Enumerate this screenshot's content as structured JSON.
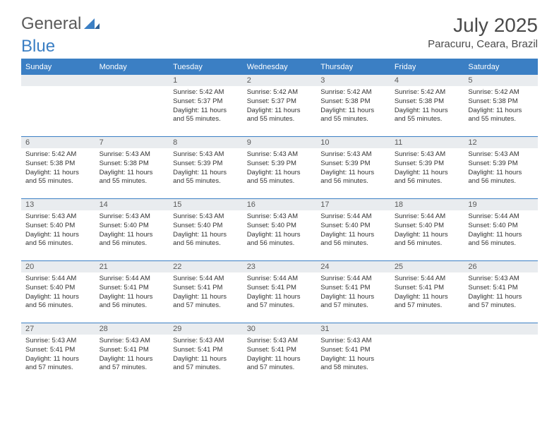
{
  "logo": {
    "text_general": "General",
    "text_blue": "Blue"
  },
  "title": "July 2025",
  "location": "Paracuru, Ceara, Brazil",
  "colors": {
    "accent": "#3b7fc4",
    "header_text": "#ffffff",
    "daynum_bg": "#e9ecef",
    "body_text": "#333333",
    "title_text": "#4a4a4a"
  },
  "day_headers": [
    "Sunday",
    "Monday",
    "Tuesday",
    "Wednesday",
    "Thursday",
    "Friday",
    "Saturday"
  ],
  "weeks": [
    [
      {
        "n": "",
        "sr": "",
        "ss": "",
        "dl": ""
      },
      {
        "n": "",
        "sr": "",
        "ss": "",
        "dl": ""
      },
      {
        "n": "1",
        "sr": "Sunrise: 5:42 AM",
        "ss": "Sunset: 5:37 PM",
        "dl": "Daylight: 11 hours and 55 minutes."
      },
      {
        "n": "2",
        "sr": "Sunrise: 5:42 AM",
        "ss": "Sunset: 5:37 PM",
        "dl": "Daylight: 11 hours and 55 minutes."
      },
      {
        "n": "3",
        "sr": "Sunrise: 5:42 AM",
        "ss": "Sunset: 5:38 PM",
        "dl": "Daylight: 11 hours and 55 minutes."
      },
      {
        "n": "4",
        "sr": "Sunrise: 5:42 AM",
        "ss": "Sunset: 5:38 PM",
        "dl": "Daylight: 11 hours and 55 minutes."
      },
      {
        "n": "5",
        "sr": "Sunrise: 5:42 AM",
        "ss": "Sunset: 5:38 PM",
        "dl": "Daylight: 11 hours and 55 minutes."
      }
    ],
    [
      {
        "n": "6",
        "sr": "Sunrise: 5:42 AM",
        "ss": "Sunset: 5:38 PM",
        "dl": "Daylight: 11 hours and 55 minutes."
      },
      {
        "n": "7",
        "sr": "Sunrise: 5:43 AM",
        "ss": "Sunset: 5:38 PM",
        "dl": "Daylight: 11 hours and 55 minutes."
      },
      {
        "n": "8",
        "sr": "Sunrise: 5:43 AM",
        "ss": "Sunset: 5:39 PM",
        "dl": "Daylight: 11 hours and 55 minutes."
      },
      {
        "n": "9",
        "sr": "Sunrise: 5:43 AM",
        "ss": "Sunset: 5:39 PM",
        "dl": "Daylight: 11 hours and 55 minutes."
      },
      {
        "n": "10",
        "sr": "Sunrise: 5:43 AM",
        "ss": "Sunset: 5:39 PM",
        "dl": "Daylight: 11 hours and 56 minutes."
      },
      {
        "n": "11",
        "sr": "Sunrise: 5:43 AM",
        "ss": "Sunset: 5:39 PM",
        "dl": "Daylight: 11 hours and 56 minutes."
      },
      {
        "n": "12",
        "sr": "Sunrise: 5:43 AM",
        "ss": "Sunset: 5:39 PM",
        "dl": "Daylight: 11 hours and 56 minutes."
      }
    ],
    [
      {
        "n": "13",
        "sr": "Sunrise: 5:43 AM",
        "ss": "Sunset: 5:40 PM",
        "dl": "Daylight: 11 hours and 56 minutes."
      },
      {
        "n": "14",
        "sr": "Sunrise: 5:43 AM",
        "ss": "Sunset: 5:40 PM",
        "dl": "Daylight: 11 hours and 56 minutes."
      },
      {
        "n": "15",
        "sr": "Sunrise: 5:43 AM",
        "ss": "Sunset: 5:40 PM",
        "dl": "Daylight: 11 hours and 56 minutes."
      },
      {
        "n": "16",
        "sr": "Sunrise: 5:43 AM",
        "ss": "Sunset: 5:40 PM",
        "dl": "Daylight: 11 hours and 56 minutes."
      },
      {
        "n": "17",
        "sr": "Sunrise: 5:44 AM",
        "ss": "Sunset: 5:40 PM",
        "dl": "Daylight: 11 hours and 56 minutes."
      },
      {
        "n": "18",
        "sr": "Sunrise: 5:44 AM",
        "ss": "Sunset: 5:40 PM",
        "dl": "Daylight: 11 hours and 56 minutes."
      },
      {
        "n": "19",
        "sr": "Sunrise: 5:44 AM",
        "ss": "Sunset: 5:40 PM",
        "dl": "Daylight: 11 hours and 56 minutes."
      }
    ],
    [
      {
        "n": "20",
        "sr": "Sunrise: 5:44 AM",
        "ss": "Sunset: 5:40 PM",
        "dl": "Daylight: 11 hours and 56 minutes."
      },
      {
        "n": "21",
        "sr": "Sunrise: 5:44 AM",
        "ss": "Sunset: 5:41 PM",
        "dl": "Daylight: 11 hours and 56 minutes."
      },
      {
        "n": "22",
        "sr": "Sunrise: 5:44 AM",
        "ss": "Sunset: 5:41 PM",
        "dl": "Daylight: 11 hours and 57 minutes."
      },
      {
        "n": "23",
        "sr": "Sunrise: 5:44 AM",
        "ss": "Sunset: 5:41 PM",
        "dl": "Daylight: 11 hours and 57 minutes."
      },
      {
        "n": "24",
        "sr": "Sunrise: 5:44 AM",
        "ss": "Sunset: 5:41 PM",
        "dl": "Daylight: 11 hours and 57 minutes."
      },
      {
        "n": "25",
        "sr": "Sunrise: 5:44 AM",
        "ss": "Sunset: 5:41 PM",
        "dl": "Daylight: 11 hours and 57 minutes."
      },
      {
        "n": "26",
        "sr": "Sunrise: 5:43 AM",
        "ss": "Sunset: 5:41 PM",
        "dl": "Daylight: 11 hours and 57 minutes."
      }
    ],
    [
      {
        "n": "27",
        "sr": "Sunrise: 5:43 AM",
        "ss": "Sunset: 5:41 PM",
        "dl": "Daylight: 11 hours and 57 minutes."
      },
      {
        "n": "28",
        "sr": "Sunrise: 5:43 AM",
        "ss": "Sunset: 5:41 PM",
        "dl": "Daylight: 11 hours and 57 minutes."
      },
      {
        "n": "29",
        "sr": "Sunrise: 5:43 AM",
        "ss": "Sunset: 5:41 PM",
        "dl": "Daylight: 11 hours and 57 minutes."
      },
      {
        "n": "30",
        "sr": "Sunrise: 5:43 AM",
        "ss": "Sunset: 5:41 PM",
        "dl": "Daylight: 11 hours and 57 minutes."
      },
      {
        "n": "31",
        "sr": "Sunrise: 5:43 AM",
        "ss": "Sunset: 5:41 PM",
        "dl": "Daylight: 11 hours and 58 minutes."
      },
      {
        "n": "",
        "sr": "",
        "ss": "",
        "dl": ""
      },
      {
        "n": "",
        "sr": "",
        "ss": "",
        "dl": ""
      }
    ]
  ]
}
